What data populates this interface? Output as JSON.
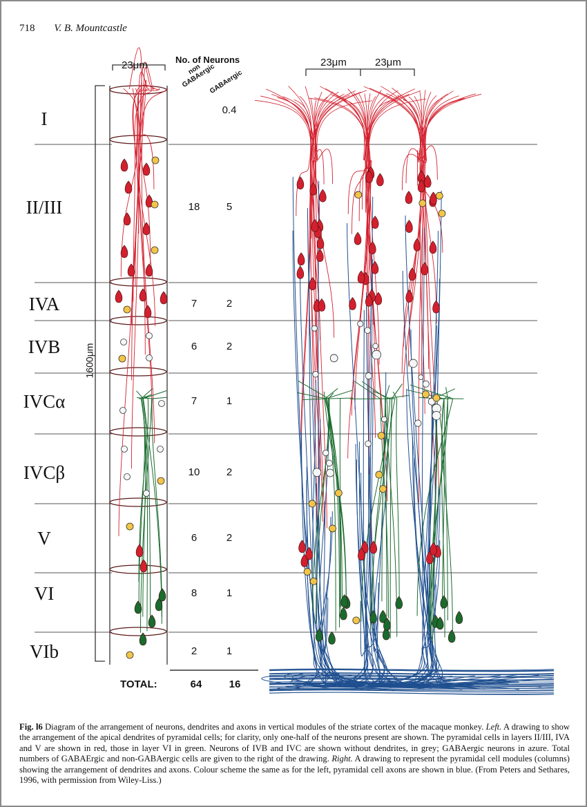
{
  "running_head": {
    "page_number": "718",
    "author": "V. B. Mountcastle"
  },
  "layers": [
    "I",
    "II/III",
    "IVA",
    "IVB",
    "IVCα",
    "IVCβ",
    "V",
    "VI",
    "VIb"
  ],
  "left_scale": "23μm",
  "right_scales": [
    "23μm",
    "23μm"
  ],
  "height_scale": "1600μm",
  "counts_header": "No. of Neurons",
  "column_headers": {
    "non_gaba": "non\nGABAergic",
    "gaba": "GABAergic"
  },
  "counts": [
    {
      "layer": "I",
      "non_gaba": "",
      "gaba": "0.4"
    },
    {
      "layer": "II/III",
      "non_gaba": "18",
      "gaba": "5"
    },
    {
      "layer": "IVA",
      "non_gaba": "7",
      "gaba": "2"
    },
    {
      "layer": "IVB",
      "non_gaba": "6",
      "gaba": "2"
    },
    {
      "layer": "IVCα",
      "non_gaba": "7",
      "gaba": "1"
    },
    {
      "layer": "IVCβ",
      "non_gaba": "10",
      "gaba": "2"
    },
    {
      "layer": "V",
      "non_gaba": "6",
      "gaba": "2"
    },
    {
      "layer": "VI",
      "non_gaba": "8",
      "gaba": "1"
    },
    {
      "layer": "VIb",
      "non_gaba": "2",
      "gaba": "1"
    }
  ],
  "total": {
    "label": "TOTAL:",
    "non_gaba": "64",
    "gaba": "16"
  },
  "caption": {
    "fig_label": "Fig. l6",
    "text1": " Diagram of the arrangement of neurons, dendrites and axons in vertical modules of the striate cortex of the macaque monkey. ",
    "left_label": "Left.",
    "text2": " A drawing to show the arrangement of the apical dendrites of pyramidal cells; for clarity, only one-half of the neurons present are shown. The pyramidal cells in layers II/III, IVA and V are shown in red, those in layer VI in green. Neurons of IVB and IVC are shown without dendrites, in grey; GABAergic neurons in azure. Total numbers of GABAErgic and non-GABAergic cells are given to the right of the drawing. ",
    "right_label": "Right.",
    "text3": " A drawing to represent the pyramidal cell modules (columns) showing the arrangement of dendrites and axons. Colour scheme the same as for the left, pyramidal cell axons are shown in blue. (From Peters and Sethares, 1996, with permission from Wiley-Liss.)"
  },
  "colors": {
    "pyramidal_red": "#d3202e",
    "pyramidal_green": "#1a6b2e",
    "axon_blue": "#1f4f8f",
    "gaba_azure": "#f2c548",
    "non_dendritic_grey": "#9aa3ad"
  }
}
